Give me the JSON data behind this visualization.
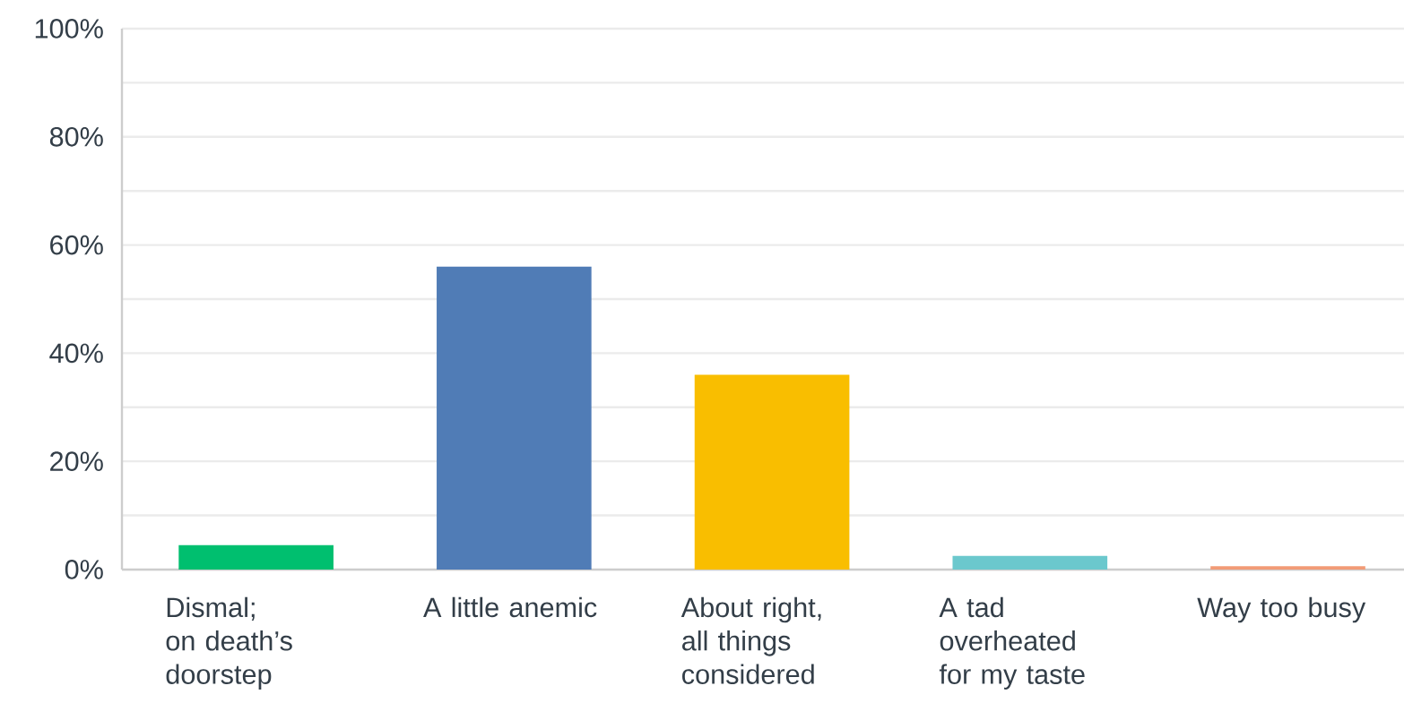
{
  "chart_data": {
    "type": "bar",
    "categories": [
      "Dismal; on death’s doorstep",
      "A little anemic",
      "About right, all things considered",
      "A tad overheated for my taste",
      "Way too busy"
    ],
    "values": [
      4.5,
      56,
      36,
      2.5,
      0.6
    ],
    "colors": [
      "#00bf6f",
      "#507cb6",
      "#f9be00",
      "#6bc8cd",
      "#f29b76"
    ],
    "ylim": [
      0,
      100
    ],
    "yticks": [
      {
        "value": 0,
        "label": "0%"
      },
      {
        "value": 10,
        "label": null
      },
      {
        "value": 20,
        "label": "20%"
      },
      {
        "value": 30,
        "label": null
      },
      {
        "value": 40,
        "label": "40%"
      },
      {
        "value": 50,
        "label": null
      },
      {
        "value": 60,
        "label": "60%"
      },
      {
        "value": 70,
        "label": null
      },
      {
        "value": 80,
        "label": "80%"
      },
      {
        "value": 90,
        "label": null
      },
      {
        "value": 100,
        "label": "100%"
      }
    ],
    "grid": "y"
  }
}
